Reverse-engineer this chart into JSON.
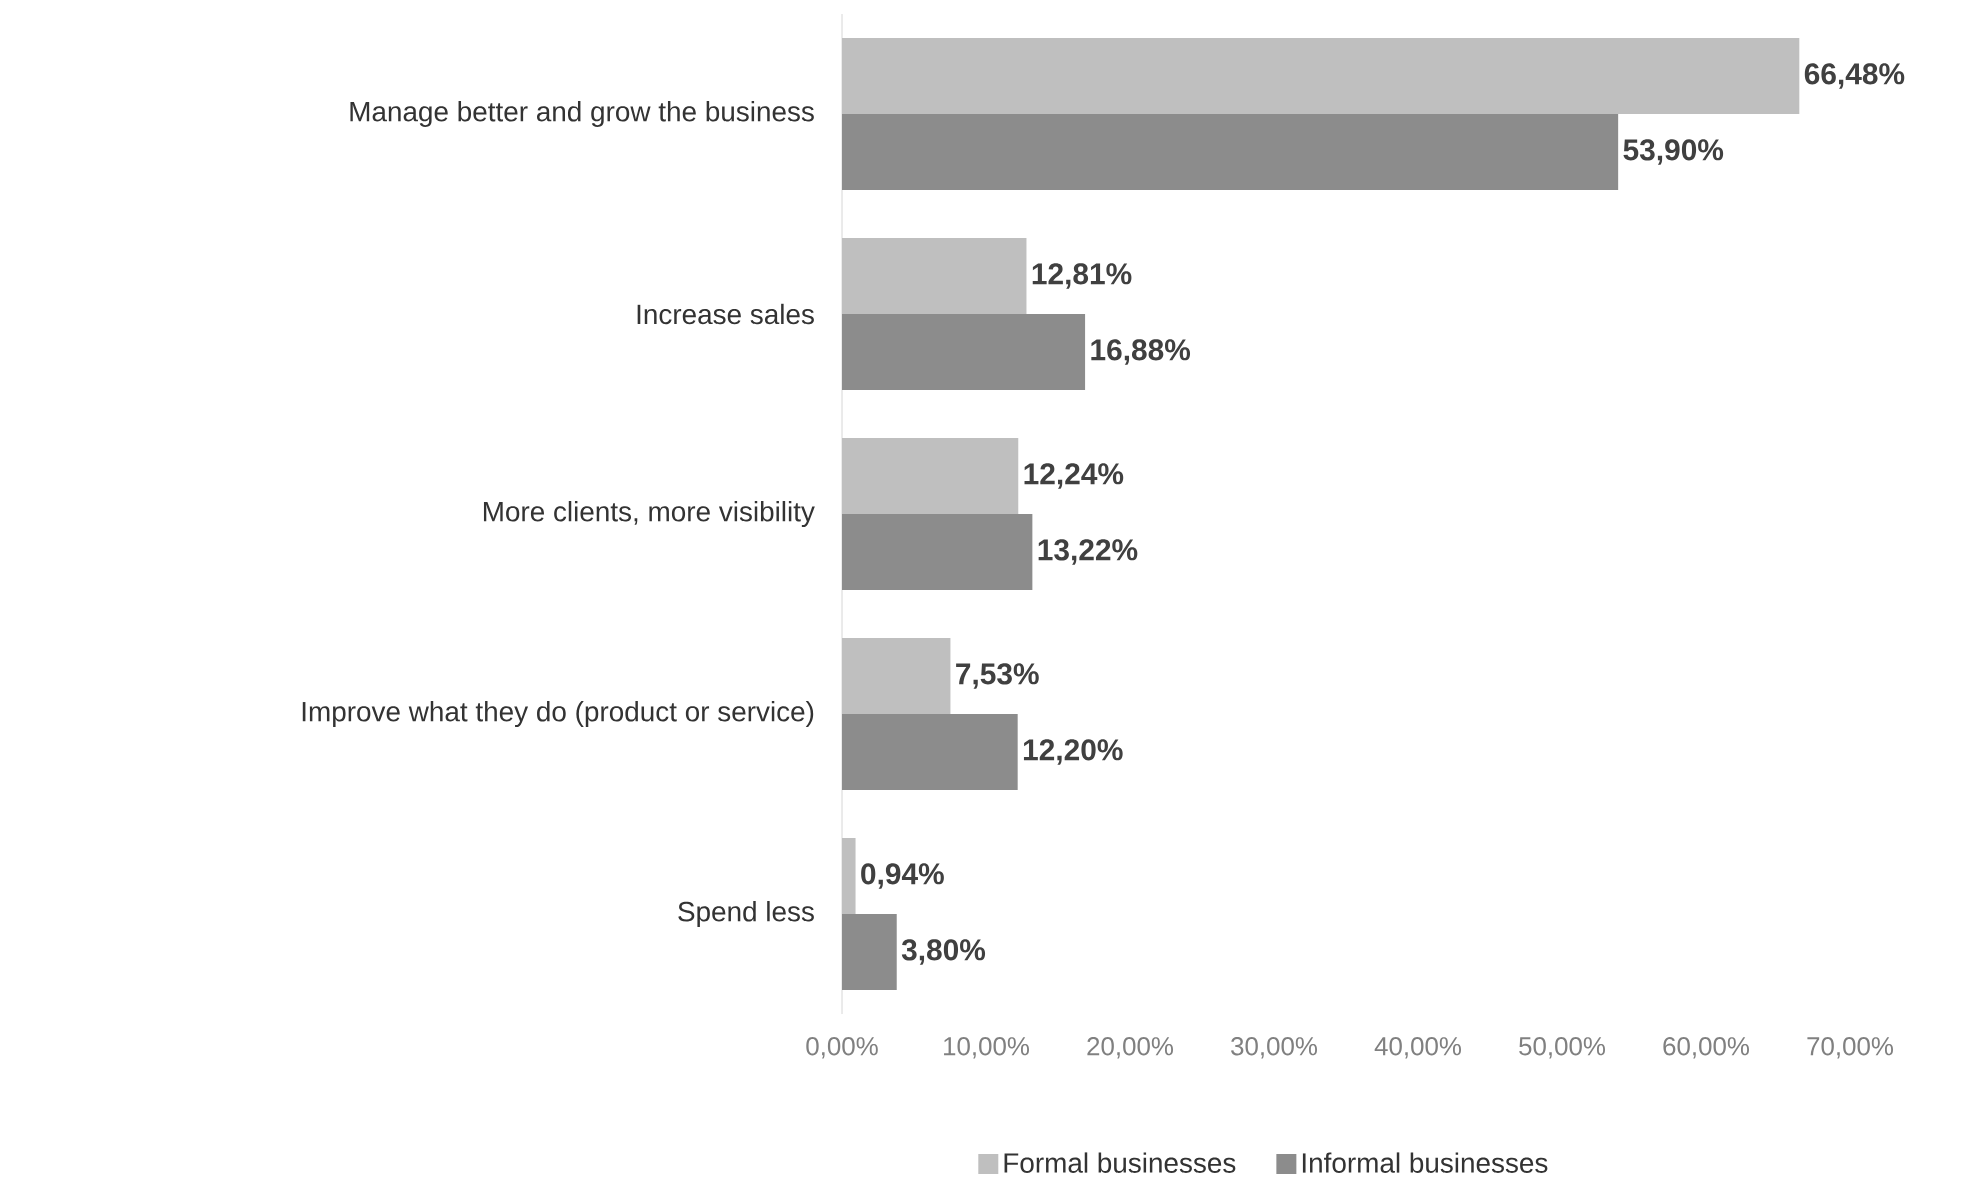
{
  "chart_data": {
    "type": "bar",
    "orientation": "horizontal",
    "categories": [
      "Manage better and grow the business",
      "Increase sales",
      "More clients, more visibility",
      "Improve what they do (product or service)",
      "Spend less"
    ],
    "series": [
      {
        "name": "Formal businesses",
        "color": "#bfbfbf",
        "values": [
          66.48,
          12.81,
          12.24,
          7.53,
          0.94
        ],
        "value_labels": [
          "66,48%",
          "12,81%",
          "12,24%",
          "7,53%",
          "0,94%"
        ]
      },
      {
        "name": "Informal businesses",
        "color": "#8c8c8c",
        "values": [
          53.9,
          16.88,
          13.22,
          12.2,
          3.8
        ],
        "value_labels": [
          "53,90%",
          "16,88%",
          "13,22%",
          "12,20%",
          "3,80%"
        ]
      }
    ],
    "xlim": [
      0,
      70
    ],
    "xticks": [
      {
        "value": 0,
        "label": "0,00%"
      },
      {
        "value": 10,
        "label": "10,00%"
      },
      {
        "value": 20,
        "label": "20,00%"
      },
      {
        "value": 30,
        "label": "30,00%"
      },
      {
        "value": 40,
        "label": "40,00%"
      },
      {
        "value": 50,
        "label": "50,00%"
      },
      {
        "value": 60,
        "label": "60,00%"
      },
      {
        "value": 70,
        "label": "70,00%"
      }
    ],
    "grid": false,
    "legend": "bottom"
  }
}
